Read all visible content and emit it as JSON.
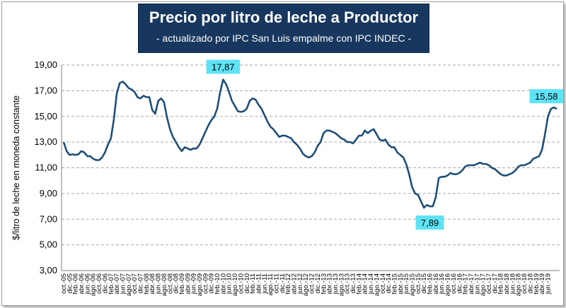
{
  "header": {
    "title": "Precio por litro de leche a Productor",
    "subtitle": "- actualizado por IPC San Luis empalme con IPC INDEC -"
  },
  "colors": {
    "line": "#1f4e79",
    "title_bg": "#17375e",
    "callout_bg": "#5ee3f5",
    "grid": "#a6a6a6"
  },
  "chart_data": {
    "type": "line",
    "title": "Precio por litro de leche a Productor",
    "subtitle": "- actualizado por IPC San Luis empalme con IPC INDEC -",
    "xlabel": "",
    "ylabel": "$/litro de leche en moneda constante",
    "ylim": [
      3,
      19
    ],
    "yticks": [
      "3,00",
      "5,00",
      "7,00",
      "9,00",
      "11,00",
      "13,00",
      "15,00",
      "17,00",
      "19,00"
    ],
    "grid": "horizontal dashed",
    "x_tick_labels": [
      "oct.-05",
      "dic.-05",
      "feb.-06",
      "abr.-06",
      "jun.-06",
      "ago.-06",
      "oct.-06",
      "dic.-06",
      "feb.-07",
      "abr.-07",
      "jun.-07",
      "ago.-07",
      "oct.-07",
      "dic.-07",
      "feb.-08",
      "abr.-08",
      "jun.-08",
      "ago.-08",
      "oct.-08",
      "dic.-08",
      "feb.-09",
      "abr.-09",
      "jun.-09",
      "ago.-09",
      "oct.-09",
      "dic.-09",
      "feb.-10",
      "abr.-10",
      "jun.-10",
      "ago.-10",
      "oct.-10",
      "dic.-10",
      "feb.-11",
      "abr.-11",
      "jun.-11",
      "ago.-11",
      "oct.-11",
      "dic.-11",
      "feb.-12",
      "abr.-12",
      "jun.-12",
      "ago.-12",
      "oct.-12",
      "dic.-12",
      "feb.-13",
      "abr.-13",
      "jun.-13",
      "ago.-13",
      "oct.-13",
      "dic.-13",
      "feb.-14",
      "abr.-14",
      "jun.-14",
      "ago.-14",
      "oct.-14",
      "dic.-14",
      "feb.-15",
      "abr.-15",
      "jun.-15",
      "ago.-15",
      "oct.-15",
      "dic.-15",
      "feb.-16",
      "abr.-16",
      "jun.-16",
      "ago.-16",
      "oct.-16",
      "dic.-16",
      "feb.-17",
      "abr.-17",
      "jun.-17",
      "ago.-17",
      "oct.-17",
      "dic.-17",
      "feb.-18",
      "abr.-18",
      "jun.-18",
      "ago.-18",
      "oct.-18",
      "dic.-18",
      "feb.-19",
      "abr.-19",
      "jun.-19"
    ],
    "series": [
      {
        "values": [
          13.0,
          12.3,
          12.0,
          12.05,
          12.0,
          12.05,
          12.3,
          12.2,
          11.9,
          11.9,
          11.7,
          11.6,
          11.6,
          11.8,
          12.2,
          12.8,
          13.3,
          14.8,
          16.8,
          17.6,
          17.7,
          17.5,
          17.2,
          17.1,
          16.9,
          16.5,
          16.4,
          16.6,
          16.5,
          16.5,
          15.5,
          15.2,
          16.2,
          16.4,
          16.1,
          14.9,
          14.0,
          13.4,
          13.0,
          12.6,
          12.3,
          12.6,
          12.5,
          12.4,
          12.5,
          12.5,
          12.8,
          13.3,
          13.8,
          14.3,
          14.7,
          15.0,
          15.6,
          16.9,
          17.87,
          17.5,
          16.9,
          16.2,
          15.8,
          15.4,
          15.35,
          15.4,
          15.6,
          16.2,
          16.4,
          16.3,
          15.9,
          15.6,
          15.1,
          14.6,
          14.2,
          14.0,
          13.7,
          13.4,
          13.5,
          13.5,
          13.4,
          13.3,
          13.0,
          12.8,
          12.5,
          12.1,
          11.9,
          11.8,
          11.9,
          12.2,
          12.7,
          13.0,
          13.7,
          13.9,
          13.9,
          13.8,
          13.7,
          13.5,
          13.3,
          13.2,
          13.0,
          13.0,
          12.9,
          13.2,
          13.5,
          13.5,
          13.9,
          13.7,
          13.9,
          14.0,
          13.6,
          13.2,
          13.1,
          13.2,
          12.8,
          12.6,
          12.6,
          12.2,
          12.0,
          11.8,
          11.3,
          10.5,
          9.5,
          9.0,
          8.9,
          8.4,
          7.89,
          8.1,
          8.0,
          8.0,
          8.7,
          10.2,
          10.3,
          10.3,
          10.4,
          10.6,
          10.5,
          10.5,
          10.6,
          10.8,
          11.1,
          11.2,
          11.2,
          11.2,
          11.3,
          11.4,
          11.3,
          11.3,
          11.2,
          11.0,
          10.9,
          10.7,
          10.5,
          10.4,
          10.4,
          10.5,
          10.6,
          10.8,
          11.1,
          11.2,
          11.2,
          11.3,
          11.4,
          11.7,
          11.8,
          11.9,
          12.4,
          13.6,
          15.0,
          15.58,
          15.7,
          15.58
        ]
      }
    ],
    "annotations": [
      {
        "label": "17,87",
        "index": 54,
        "value": 17.87
      },
      {
        "label": "7,89",
        "index": 124,
        "value": 7.89
      },
      {
        "label": "15,58",
        "index": 165,
        "value": 15.58
      }
    ]
  }
}
